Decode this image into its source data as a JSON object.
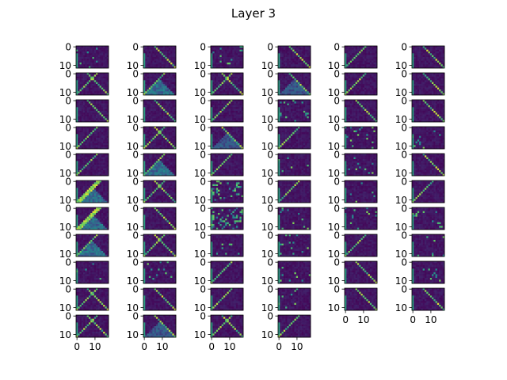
{
  "figure": {
    "title": "Layer 3"
  },
  "chart_data": {
    "type": "heatmap",
    "title": "Layer 3",
    "grid": false,
    "layout": {
      "columns": 6,
      "rows": 11,
      "panel_count": 64
    },
    "panel_shape": {
      "height": 12,
      "width": 18
    },
    "colormap": "viridis",
    "value_range": [
      0,
      1
    ],
    "x_ticks": [
      0,
      10
    ],
    "y_ticks": [
      0,
      10
    ],
    "xtick_columns_last_panel": [
      "0",
      "10"
    ],
    "ytick_labels": [
      "0",
      "10"
    ],
    "colors": {
      "background": "#440154",
      "low": "#3b528b",
      "mid": "#21918c",
      "high": "#5ec962",
      "peak": "#fde725"
    },
    "panels_missing": [
      "row 11 col 5",
      "row 11 col 6"
    ],
    "note_pattern": "diagonal bright stripes on dark purple background"
  }
}
